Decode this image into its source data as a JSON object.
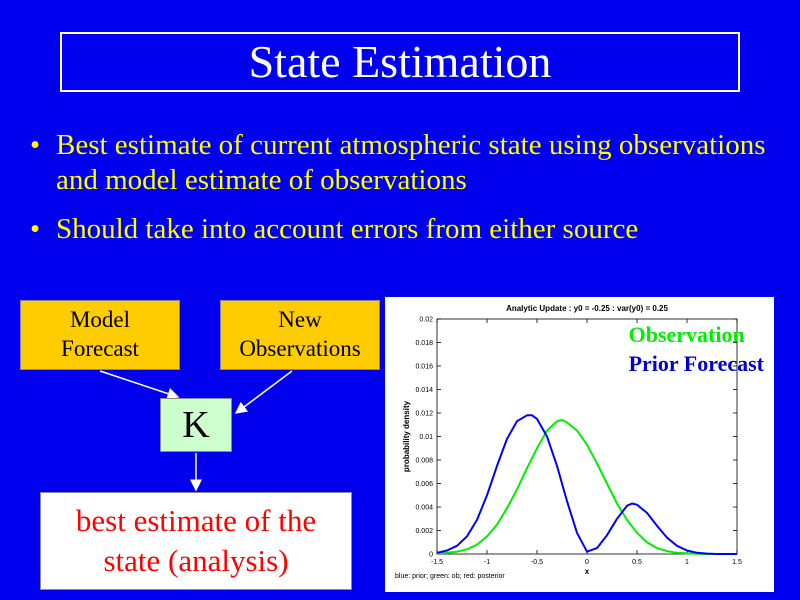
{
  "slide": {
    "title": "State Estimation",
    "bullets": [
      {
        "marker": "•",
        "text": "Best estimate of current atmospheric state using observations and model estimate of observations"
      },
      {
        "marker": "•",
        "text": "Should take into account errors from either source"
      }
    ]
  },
  "diagram": {
    "model_forecast": {
      "line1": "Model",
      "line2": "Forecast"
    },
    "new_observations": {
      "line1": "New",
      "line2": "Observations"
    },
    "k_label": "K",
    "analysis": {
      "line1": "best estimate of the",
      "line2": "state (analysis)"
    }
  },
  "legend": {
    "observation": "Observation",
    "prior_forecast": "Prior Forecast"
  },
  "footnote": "blue: prior; green: ob; red: posterior",
  "colors": {
    "background": "#0000ee",
    "bullet_text": "#ffff00",
    "box_fill": "#ffcc00",
    "k_fill": "#ccffcc",
    "analysis_text": "#ff0000",
    "observation": "#00ee00",
    "prior": "#0000ff"
  },
  "chart_data": {
    "type": "line",
    "title": "Analytic Update : y0 = -0.25 : var(y0) = 0.25",
    "xlabel": "x",
    "ylabel": "probability density",
    "xlim": [
      -1.5,
      1.5
    ],
    "ylim": [
      0,
      0.02
    ],
    "xticks": [
      "-1.5",
      "-1",
      "-0.5",
      "0",
      "0.5",
      "1",
      "1.5"
    ],
    "yticks": [
      "0",
      "0.002",
      "0.004",
      "0.006",
      "0.008",
      "0.01",
      "0.012",
      "0.014",
      "0.016",
      "0.018",
      "0.02"
    ],
    "grid": false,
    "series": [
      {
        "name": "Observation",
        "color": "#00ee00",
        "x": [
          -1.5,
          -1.4,
          -1.3,
          -1.2,
          -1.1,
          -1.0,
          -0.9,
          -0.8,
          -0.7,
          -0.6,
          -0.5,
          -0.4,
          -0.3,
          -0.25,
          -0.2,
          -0.1,
          0.0,
          0.1,
          0.2,
          0.3,
          0.4,
          0.5,
          0.6,
          0.7,
          0.8,
          0.9,
          1.0,
          1.1,
          1.2,
          1.3,
          1.4,
          1.5
        ],
        "y": [
          5e-05,
          0.0001,
          0.0002,
          0.0004,
          0.0008,
          0.0015,
          0.0025,
          0.0039,
          0.0055,
          0.0073,
          0.009,
          0.0105,
          0.0113,
          0.0114,
          0.0112,
          0.0105,
          0.0093,
          0.0077,
          0.006,
          0.0043,
          0.0029,
          0.0018,
          0.001,
          0.0005,
          0.00025,
          0.0001,
          5e-05,
          2e-05,
          0.0,
          0.0,
          0.0,
          0.0
        ]
      },
      {
        "name": "Prior Forecast",
        "color": "#0000ff",
        "x": [
          -1.5,
          -1.4,
          -1.3,
          -1.2,
          -1.1,
          -1.0,
          -0.9,
          -0.8,
          -0.7,
          -0.6,
          -0.55,
          -0.5,
          -0.4,
          -0.3,
          -0.2,
          -0.1,
          0.0,
          0.1,
          0.2,
          0.3,
          0.4,
          0.45,
          0.5,
          0.6,
          0.7,
          0.8,
          0.9,
          1.0,
          1.1,
          1.2,
          1.3,
          1.4,
          1.5
        ],
        "y": [
          0.0001,
          0.0003,
          0.0007,
          0.0015,
          0.0029,
          0.005,
          0.0075,
          0.0098,
          0.0113,
          0.0118,
          0.0118,
          0.0115,
          0.01,
          0.0075,
          0.0045,
          0.0018,
          0.0002,
          0.0005,
          0.0016,
          0.003,
          0.0041,
          0.0043,
          0.0042,
          0.0035,
          0.0024,
          0.0014,
          0.0007,
          0.0003,
          0.0001,
          3e-05,
          0.0,
          0.0,
          0.0
        ]
      }
    ]
  }
}
